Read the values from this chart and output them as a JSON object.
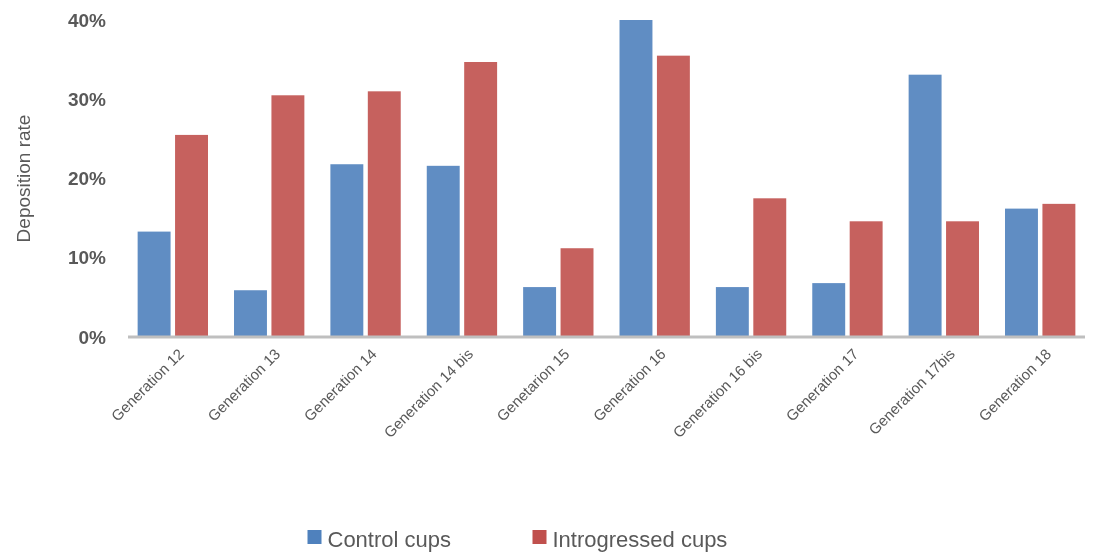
{
  "chart_data": {
    "type": "bar",
    "ylabel": "Deposition rate",
    "categories": [
      "Generation 12",
      "Generation 13",
      "Generation 14",
      "Generation 14 bis",
      "Genetarion 15",
      "Generation 16",
      "Generation 16 bis",
      "Generation 17",
      "Generation 17bis",
      "Generation 18"
    ],
    "series": [
      {
        "name": "Control cups",
        "color": "#4f81bd",
        "values": [
          13.3,
          5.9,
          21.8,
          21.6,
          6.3,
          40.0,
          6.3,
          6.8,
          33.1,
          16.2
        ]
      },
      {
        "name": "Introgressed cups",
        "color": "#c0504d",
        "values": [
          25.5,
          30.5,
          31.0,
          34.7,
          11.2,
          35.5,
          17.5,
          14.6,
          14.6,
          16.8
        ]
      }
    ],
    "ylim": [
      0,
      40
    ],
    "yticks": [
      {
        "value": 0,
        "label": "0%"
      },
      {
        "value": 10,
        "label": "10%"
      },
      {
        "value": 20,
        "label": "20%"
      },
      {
        "value": 30,
        "label": "30%"
      },
      {
        "value": 40,
        "label": "40%"
      }
    ],
    "grid": false,
    "legend": "bottom"
  }
}
